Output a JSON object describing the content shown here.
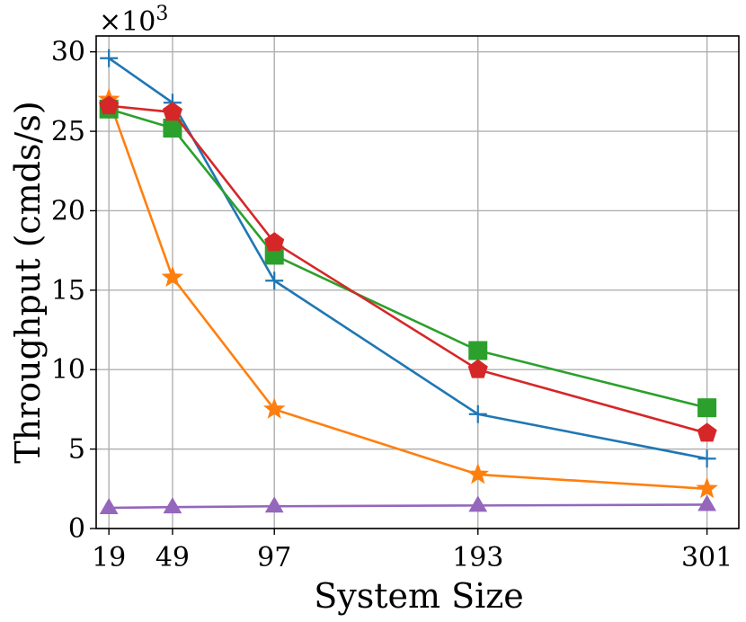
{
  "chart_data": {
    "type": "line",
    "title": "",
    "xlabel": "System Size",
    "ylabel": "Throughput (cmds/s)",
    "y_multiplier_label": "×10",
    "y_multiplier_exponent": "3",
    "x": [
      19,
      49,
      97,
      193,
      301
    ],
    "x_tick_labels": [
      "19",
      "49",
      "97",
      "193",
      "301"
    ],
    "y_ticks": [
      0,
      5,
      10,
      15,
      20,
      25,
      30
    ],
    "y_tick_labels": [
      "0",
      "5",
      "10",
      "15",
      "20",
      "25",
      "30"
    ],
    "xlim": [
      13,
      316
    ],
    "ylim": [
      0,
      31
    ],
    "grid": true,
    "series": [
      {
        "name": "plus-series",
        "color": "#1f77b4",
        "marker": "plus",
        "values": [
          29.6,
          26.8,
          15.6,
          7.2,
          4.4
        ]
      },
      {
        "name": "star-series",
        "color": "#ff7f0e",
        "marker": "star",
        "values": [
          27.0,
          15.8,
          7.5,
          3.4,
          2.5
        ]
      },
      {
        "name": "square-series",
        "color": "#2ca02c",
        "marker": "square",
        "values": [
          26.4,
          25.2,
          17.2,
          11.2,
          7.6
        ]
      },
      {
        "name": "pentagon-series",
        "color": "#d62728",
        "marker": "pentagon",
        "values": [
          26.6,
          26.2,
          18.0,
          10.0,
          6.0
        ]
      },
      {
        "name": "triangle-series",
        "color": "#9467bd",
        "marker": "triangle",
        "values": [
          1.3,
          1.35,
          1.4,
          1.45,
          1.5
        ]
      }
    ]
  }
}
